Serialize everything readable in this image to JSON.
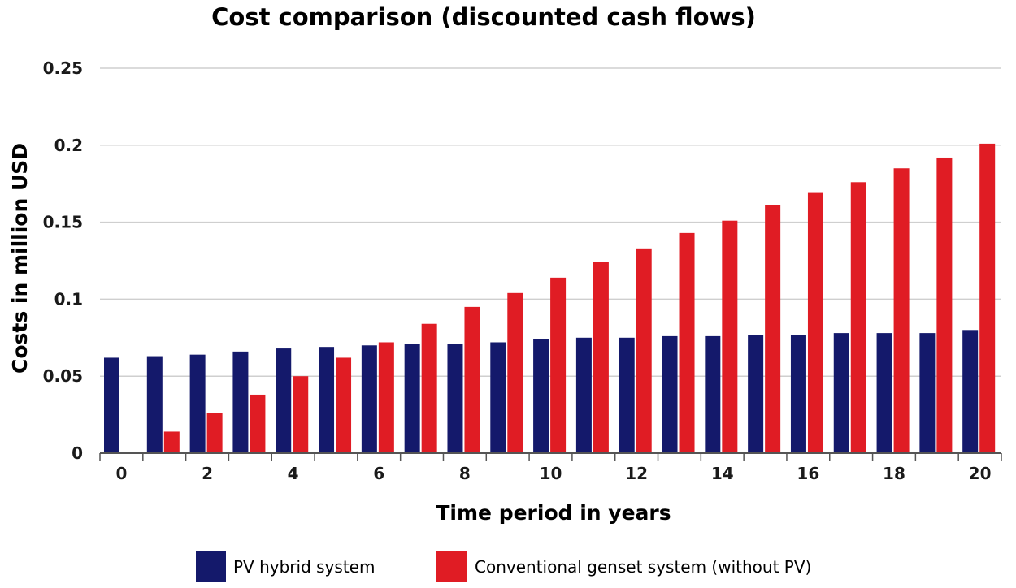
{
  "chart_data": {
    "type": "bar",
    "title": "Cost comparison (discounted cash flows)",
    "xlabel": "Time period in years",
    "ylabel": "Costs in million USD",
    "ylim": [
      0,
      0.25
    ],
    "yticks": [
      {
        "value": 0,
        "label": "0"
      },
      {
        "value": 0.05,
        "label": "0.05"
      },
      {
        "value": 0.1,
        "label": "0.1"
      },
      {
        "value": 0.15,
        "label": "0.15"
      },
      {
        "value": 0.2,
        "label": "0.2"
      },
      {
        "value": 0.25,
        "label": "0.25"
      }
    ],
    "categories": [
      0,
      1,
      2,
      3,
      4,
      5,
      6,
      7,
      8,
      9,
      10,
      11,
      12,
      13,
      14,
      15,
      16,
      17,
      18,
      19,
      20
    ],
    "xtick_labels": [
      "0",
      "2",
      "4",
      "6",
      "8",
      "10",
      "12",
      "14",
      "16",
      "18",
      "20"
    ],
    "xtick_values": [
      0,
      2,
      4,
      6,
      8,
      10,
      12,
      14,
      16,
      18,
      20
    ],
    "grid": true,
    "legend_position": "bottom",
    "series": [
      {
        "name": "PV hybrid system",
        "color": "#14196b",
        "values": [
          0.062,
          0.063,
          0.064,
          0.066,
          0.068,
          0.069,
          0.07,
          0.071,
          0.071,
          0.072,
          0.074,
          0.075,
          0.075,
          0.076,
          0.076,
          0.077,
          0.077,
          0.078,
          0.078,
          0.078,
          0.08
        ]
      },
      {
        "name": "Conventional genset system (without PV)",
        "color": "#e01c24",
        "values": [
          0.0,
          0.014,
          0.026,
          0.038,
          0.05,
          0.062,
          0.072,
          0.084,
          0.095,
          0.104,
          0.114,
          0.124,
          0.133,
          0.143,
          0.151,
          0.161,
          0.169,
          0.176,
          0.185,
          0.192,
          0.201
        ]
      }
    ]
  }
}
